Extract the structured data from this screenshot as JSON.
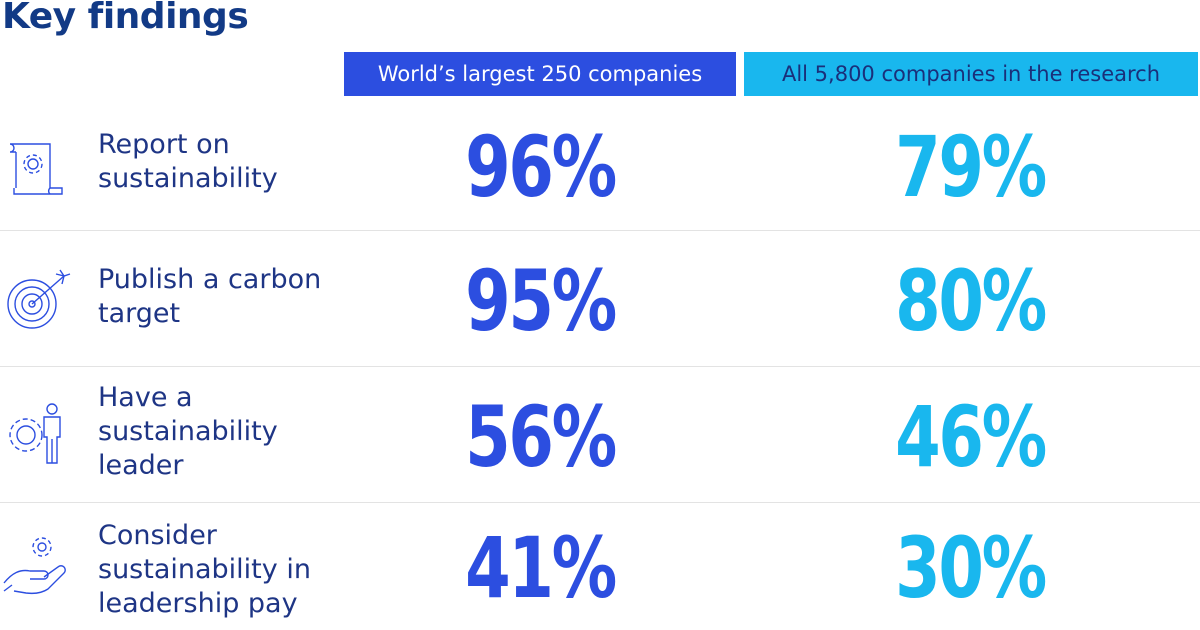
{
  "title": "Key findings",
  "columns": [
    {
      "label": "World’s largest 250 companies",
      "color": "#2c4ee0"
    },
    {
      "label": "All 5,800 companies in the research",
      "color": "#19b7ee"
    }
  ],
  "rows": [
    {
      "icon": "document-gear-icon",
      "label": "Report on sustainability",
      "value_top250": "96%",
      "value_all": "79%"
    },
    {
      "icon": "target-arrow-icon",
      "label": "Publish a carbon target",
      "value_top250": "95%",
      "value_all": "80%"
    },
    {
      "icon": "person-gear-icon",
      "label": "Have a sustainability leader",
      "value_top250": "56%",
      "value_all": "46%"
    },
    {
      "icon": "hand-gear-icon",
      "label": "Consider sustainability in leadership pay",
      "value_top250": "41%",
      "value_all": "30%"
    }
  ]
}
